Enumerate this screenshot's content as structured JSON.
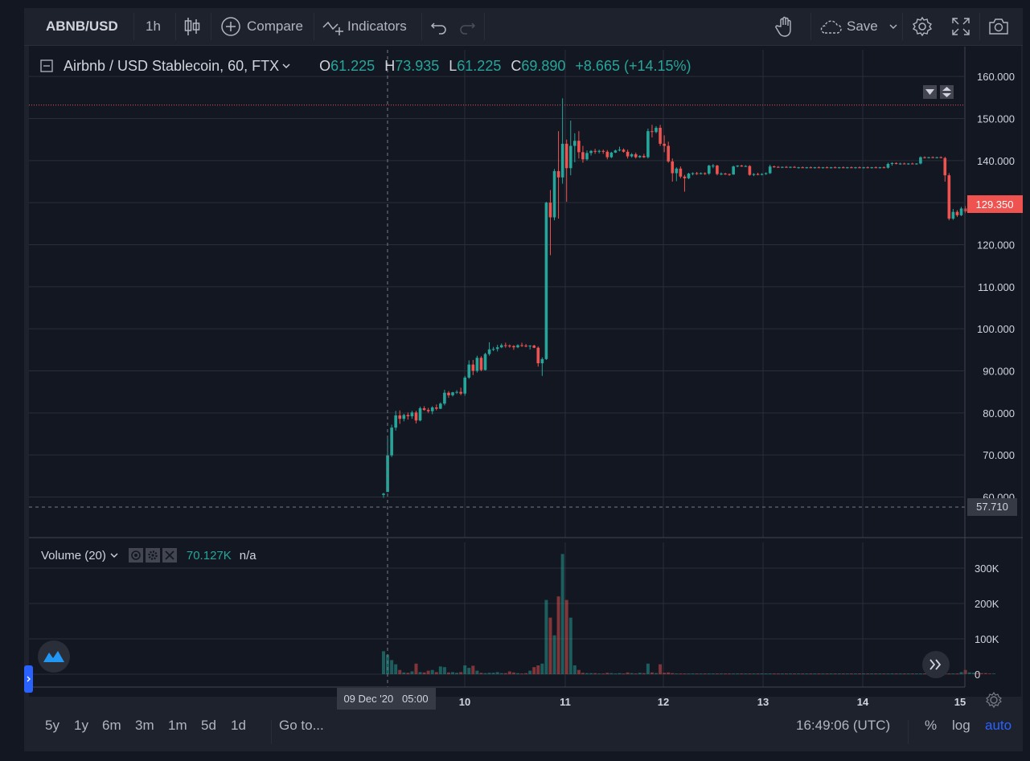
{
  "toolbar": {
    "symbol": "ABNB/USD",
    "interval": "1h",
    "compare_label": "Compare",
    "indicators_label": "Indicators",
    "save_label": "Save"
  },
  "legend": {
    "title": "Airbnb / USD Stablecoin, 60, FTX",
    "o_label": "O",
    "o_value": "61.225",
    "h_label": "H",
    "h_value": "73.935",
    "l_label": "L",
    "l_value": "61.225",
    "c_label": "C",
    "c_value": "69.890",
    "change": "+8.665 (+14.15%)"
  },
  "volume_legend": {
    "title": "Volume (20)",
    "value": "70.127K",
    "ma": "n/a"
  },
  "colors": {
    "up": "#26a69a",
    "down": "#ef5350",
    "background": "#131722",
    "panel": "#1e222d",
    "grid": "#2a2e39",
    "accent": "#2962ff"
  },
  "chart_data": {
    "type": "candlestick",
    "price_axis": {
      "ticks": [
        60,
        70,
        80,
        90,
        100,
        110,
        120,
        130,
        140,
        150,
        160
      ],
      "tick_labels": [
        "60.000",
        "70.000",
        "80.000",
        "90.000",
        "100.000",
        "110.000",
        "120.000",
        "130.000",
        "140.000",
        "150.000",
        "160.000"
      ],
      "range": [
        57,
        164
      ]
    },
    "last_price_label": "129.350",
    "crosshair_price_label": "57.710",
    "max_line_value": 153.2,
    "crosshair_date_label": "09 Dec '20   05:00",
    "time_axis_labels": [
      "10",
      "11",
      "12",
      "13",
      "14",
      "15"
    ],
    "volume_axis": {
      "tick_labels": [
        "0",
        "100K",
        "200K",
        "300K"
      ],
      "ticks": [
        0,
        100000,
        200000,
        300000
      ],
      "range": [
        -10000,
        375000
      ]
    },
    "candles": [
      [
        60.5,
        61,
        59.8,
        60.8
      ],
      [
        61.2,
        73.9,
        61.2,
        69.9
      ],
      [
        69.9,
        77.2,
        69.5,
        76.5
      ],
      [
        76.5,
        80.5,
        75.8,
        79.4
      ],
      [
        79.4,
        80.6,
        77.4,
        78.6
      ],
      [
        78.6,
        79.8,
        78,
        79.5
      ],
      [
        79.5,
        80.1,
        78.4,
        79.2
      ],
      [
        79.2,
        80.5,
        78.6,
        80.1
      ],
      [
        80.1,
        80.5,
        77.5,
        78.2
      ],
      [
        78.2,
        81.5,
        78,
        81.1
      ],
      [
        81.1,
        81.6,
        80.5,
        80.7
      ],
      [
        80.7,
        81.2,
        80,
        80.4
      ],
      [
        80.4,
        81.6,
        79.7,
        81.3
      ],
      [
        81.3,
        82,
        80.6,
        81
      ],
      [
        81,
        82.5,
        80.9,
        82.2
      ],
      [
        82.2,
        85.5,
        81.8,
        84.8
      ],
      [
        84.8,
        85.2,
        83.6,
        84.2
      ],
      [
        84.2,
        85,
        83.9,
        84.9
      ],
      [
        84.9,
        85.4,
        84.5,
        85
      ],
      [
        85,
        86,
        84.2,
        84.6
      ],
      [
        84.6,
        88.8,
        84.1,
        88.4
      ],
      [
        88.4,
        92.5,
        88.1,
        91.5
      ],
      [
        91.5,
        92.6,
        89,
        90
      ],
      [
        90,
        93.6,
        89.6,
        93.1
      ],
      [
        93.1,
        93.5,
        89.9,
        90.2
      ],
      [
        90.2,
        94.3,
        90.1,
        94
      ],
      [
        94,
        96.8,
        93.6,
        95.1
      ],
      [
        95.1,
        95.7,
        94.7,
        95.2
      ],
      [
        95.2,
        96.2,
        94.6,
        95.6
      ],
      [
        95.6,
        96.5,
        95.4,
        96.1
      ],
      [
        96.1,
        96.7,
        95.5,
        96
      ],
      [
        96,
        96.3,
        95.5,
        95.9
      ],
      [
        95.9,
        96.1,
        95,
        95.6
      ],
      [
        95.6,
        96.3,
        95.4,
        96.1
      ],
      [
        96.1,
        96.7,
        95.7,
        96
      ],
      [
        96,
        96.4,
        95.6,
        95.8
      ],
      [
        95.8,
        96.1,
        95.1,
        96
      ],
      [
        96,
        96.2,
        95.4,
        95.5
      ],
      [
        95.5,
        95.8,
        91,
        91.8
      ],
      [
        91.8,
        93.2,
        88.8,
        92.8
      ],
      [
        92.8,
        130.2,
        92.6,
        130
      ],
      [
        130,
        133,
        117.5,
        126.5
      ],
      [
        126.5,
        138,
        125.8,
        137.5
      ],
      [
        137.5,
        147,
        126.2,
        136
      ],
      [
        136,
        154.8,
        134.5,
        144
      ],
      [
        144,
        145,
        130.2,
        138.2
      ],
      [
        138.2,
        149.5,
        136.5,
        143.5
      ],
      [
        143.5,
        146.5,
        139.6,
        144.7
      ],
      [
        144.7,
        147,
        140.5,
        142
      ],
      [
        142,
        143.5,
        139.5,
        140.3
      ],
      [
        140.3,
        142.4,
        140,
        141.8
      ],
      [
        141.8,
        142.5,
        141.2,
        142.3
      ],
      [
        142.3,
        142.8,
        141.6,
        142.1
      ],
      [
        142.1,
        142.6,
        141.7,
        142.3
      ],
      [
        142.3,
        142.6,
        141.6,
        142.1
      ],
      [
        142.1,
        142.5,
        140.3,
        140.8
      ],
      [
        140.8,
        142.1,
        140.6,
        141.9
      ],
      [
        141.9,
        142.6,
        141.8,
        142.4
      ],
      [
        142.4,
        143.3,
        142.2,
        142.6
      ],
      [
        142.6,
        142.9,
        141.9,
        142.1
      ],
      [
        142.1,
        142.6,
        140.5,
        141
      ],
      [
        141,
        141.8,
        140.7,
        141.5
      ],
      [
        141.5,
        141.9,
        140.5,
        140.8
      ],
      [
        140.8,
        141.3,
        140.6,
        141.1
      ],
      [
        141.1,
        141.6,
        140.6,
        140.8
      ],
      [
        140.8,
        147.6,
        140.5,
        147
      ],
      [
        147,
        148.5,
        145.5,
        146.8
      ],
      [
        146.8,
        148.2,
        146.5,
        147.8
      ],
      [
        147.8,
        148.5,
        143.5,
        144
      ],
      [
        144,
        146,
        142,
        143.5
      ],
      [
        143.5,
        144.5,
        139.5,
        139.8
      ],
      [
        139.8,
        140.5,
        135,
        137
      ],
      [
        137,
        138.4,
        135.1,
        138.1
      ],
      [
        138.1,
        138.6,
        135.8,
        136.2
      ],
      [
        136.2,
        136.6,
        132.6,
        135.8
      ],
      [
        135.8,
        137.1,
        135.6,
        136.9
      ],
      [
        136.9,
        137.2,
        136.5,
        137
      ],
      [
        137,
        137.3,
        136.6,
        136.8
      ],
      [
        136.8,
        137.2,
        136.7,
        137
      ],
      [
        137,
        137.2,
        136.6,
        136.9
      ],
      [
        136.9,
        139,
        136.6,
        138.8
      ],
      [
        138.8,
        139.2,
        138.2,
        138.8
      ],
      [
        138.8,
        139,
        136.5,
        136.8
      ],
      [
        136.8,
        137.2,
        136.5,
        136.9
      ],
      [
        136.9,
        137.1,
        136.6,
        136.8
      ],
      [
        136.8,
        136.9,
        136.4,
        136.7
      ],
      [
        136.7,
        138.8,
        136.6,
        138.6
      ],
      [
        138.6,
        138.9,
        138.4,
        138.8
      ],
      [
        138.8,
        139,
        138.5,
        138.6
      ],
      [
        138.6,
        138.9,
        138.5,
        138.7
      ],
      [
        138.7,
        138.9,
        136.4,
        136.6
      ],
      [
        136.6,
        137,
        136.3,
        136.8
      ],
      [
        136.8,
        137.1,
        136.5,
        136.7
      ],
      [
        136.7,
        137,
        136.5,
        136.8
      ],
      [
        136.8,
        137.2,
        136.6,
        137
      ],
      [
        137,
        139,
        136.8,
        138.6
      ],
      [
        138.6,
        138.8,
        138.3,
        138.5
      ],
      [
        138.5,
        138.7,
        138.3,
        138.4
      ],
      [
        138.4,
        138.6,
        138.2,
        138.5
      ],
      [
        138.5,
        138.7,
        138.3,
        138.4
      ],
      [
        138.4,
        138.6,
        138.2,
        138.5
      ],
      [
        138.5,
        138.7,
        138.3,
        138.3
      ],
      [
        138.3,
        138.5,
        138.1,
        138.4
      ],
      [
        138.4,
        138.6,
        138.2,
        138.3
      ],
      [
        138.3,
        138.5,
        138.1,
        138.4
      ],
      [
        138.4,
        138.6,
        138.2,
        138.3
      ],
      [
        138.3,
        138.5,
        138.1,
        138.4
      ],
      [
        138.4,
        138.6,
        138.2,
        138.3
      ],
      [
        138.3,
        138.5,
        138.1,
        138.4
      ],
      [
        138.4,
        138.6,
        138.2,
        138.3
      ],
      [
        138.3,
        138.5,
        138.1,
        138.4
      ],
      [
        138.4,
        138.6,
        138.2,
        138.3
      ],
      [
        138.3,
        138.5,
        138.1,
        138.4
      ],
      [
        138.4,
        138.6,
        138.2,
        138.3
      ],
      [
        138.3,
        138.5,
        138.1,
        138.4
      ],
      [
        138.4,
        138.6,
        138.2,
        138.3
      ],
      [
        138.3,
        138.5,
        138.1,
        138.4
      ],
      [
        138.4,
        138.6,
        138.2,
        138.3
      ],
      [
        138.3,
        138.5,
        138.1,
        138.4
      ],
      [
        138.4,
        138.6,
        138.2,
        138.3
      ],
      [
        138.3,
        138.5,
        138.1,
        138.4
      ],
      [
        138.4,
        138.6,
        138.2,
        138.3
      ],
      [
        138.3,
        138.5,
        138.1,
        138.4
      ],
      [
        138.4,
        138.6,
        138.2,
        138.3
      ],
      [
        138.3,
        139.5,
        138.1,
        139.2
      ],
      [
        139.2,
        139.6,
        138.8,
        139.4
      ],
      [
        139.4,
        139.6,
        139.1,
        139.2
      ],
      [
        139.2,
        139.5,
        139,
        139.3
      ],
      [
        139.3,
        139.5,
        139.1,
        139.2
      ],
      [
        139.2,
        139.4,
        139,
        139.3
      ],
      [
        139.3,
        139.5,
        139.1,
        139.2
      ],
      [
        139.2,
        139.4,
        139,
        139.3
      ],
      [
        139.3,
        141,
        139.1,
        140.8
      ],
      [
        140.8,
        141,
        140.5,
        140.7
      ],
      [
        140.7,
        140.9,
        140.5,
        140.8
      ],
      [
        140.8,
        141,
        140.6,
        140.7
      ],
      [
        140.7,
        140.9,
        140.5,
        140.8
      ],
      [
        140.8,
        141,
        140.6,
        140.6
      ],
      [
        140.6,
        140.9,
        135,
        136.5
      ],
      [
        136.5,
        137,
        125.8,
        126.2
      ],
      [
        126.2,
        128.5,
        125.9,
        127.8
      ],
      [
        127.8,
        128.2,
        126.6,
        127
      ],
      [
        127,
        129,
        126.8,
        128.6
      ],
      [
        128.6,
        129.2,
        127.5,
        127.9
      ],
      [
        127.9,
        130.5,
        127.8,
        130.1
      ],
      [
        130.1,
        130.8,
        129.6,
        130.3
      ],
      [
        130.3,
        130.6,
        129.4,
        129.8
      ],
      [
        129.8,
        130.2,
        129.1,
        129.6
      ],
      [
        129.6,
        130,
        128.4,
        128.9
      ],
      [
        128.9,
        129.2,
        127.9,
        128.2
      ],
      [
        128.2,
        130,
        128,
        129.35
      ]
    ],
    "volume": [
      65000,
      55000,
      40000,
      28000,
      12000,
      5000,
      4000,
      8000,
      30000,
      6000,
      5000,
      10000,
      12000,
      6000,
      22000,
      20000,
      5000,
      6000,
      4000,
      6000,
      25000,
      18000,
      24000,
      10000,
      4000,
      3000,
      4000,
      4000,
      6000,
      3000,
      3000,
      8000,
      5000,
      3000,
      2000,
      3000,
      10000,
      20000,
      25000,
      30000,
      210000,
      160000,
      110000,
      220000,
      340000,
      210000,
      160000,
      25000,
      12000,
      4000,
      3000,
      3000,
      3000,
      2000,
      2000,
      4000,
      3000,
      2000,
      3000,
      2000,
      5000,
      3000,
      2000,
      4000,
      3000,
      30000,
      5000,
      3000,
      28000,
      4000,
      5000,
      3000,
      2000,
      2000,
      2000,
      2000,
      2000,
      2000,
      2000,
      2000,
      2000,
      2000,
      2000,
      2000,
      2000,
      2000,
      2000,
      2000,
      2000,
      2000,
      2000,
      2000,
      2000,
      2000,
      2000,
      2000,
      2000,
      2000,
      2000,
      2000,
      2000,
      2000,
      2000,
      2000,
      2000,
      2000,
      2000,
      2000,
      2000,
      2000,
      2000,
      2000,
      2000,
      2000,
      2000,
      2000,
      2000,
      2000,
      2000,
      2000,
      2000,
      2000,
      2000,
      2000,
      2000,
      2000,
      2000,
      2000,
      2000,
      2000,
      2000,
      2000,
      2000,
      2000,
      2000,
      2000,
      2000,
      2000,
      2000,
      2000,
      2000,
      2000,
      6000,
      12000,
      5000,
      4000,
      3000,
      3000,
      3000,
      2000,
      2000,
      2000,
      3000
    ]
  },
  "bottom_bar": {
    "ranges": [
      "5y",
      "1y",
      "6m",
      "3m",
      "1m",
      "5d",
      "1d"
    ],
    "goto_label": "Go to...",
    "clock": "16:49:06 (UTC)",
    "percent_label": "%",
    "log_label": "log",
    "auto_label": "auto"
  }
}
